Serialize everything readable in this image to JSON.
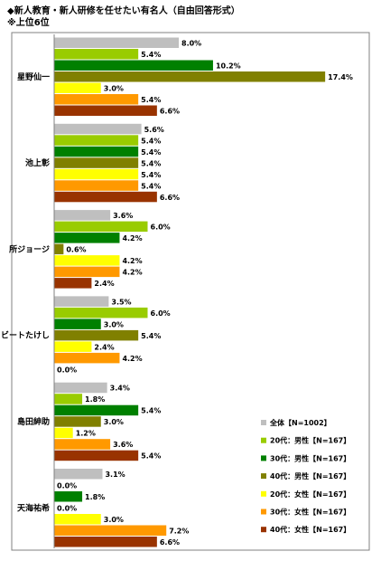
{
  "title": "◆新人教育・新人研修を任せたい有名人（自由回答形式）",
  "subtitle": "※上位6位",
  "chart_data": {
    "type": "bar",
    "orientation": "horizontal",
    "categories": [
      "星野仙一",
      "池上彰",
      "所ジョージ",
      "ビートたけし",
      "島田紳助",
      "天海祐希"
    ],
    "series": [
      {
        "name": "全体【N=1002】",
        "color": "#bfbfbf",
        "values": [
          8.0,
          5.6,
          3.6,
          3.5,
          3.4,
          3.1
        ]
      },
      {
        "name": "20代：男性【N=167】",
        "color": "#99cc00",
        "values": [
          5.4,
          5.4,
          6.0,
          6.0,
          1.8,
          0.0
        ]
      },
      {
        "name": "30代：男性【N=167】",
        "color": "#008000",
        "values": [
          10.2,
          5.4,
          4.2,
          3.0,
          5.4,
          1.8
        ]
      },
      {
        "name": "40代：男性【N=167】",
        "color": "#808000",
        "values": [
          17.4,
          5.4,
          0.6,
          5.4,
          3.0,
          0.0
        ]
      },
      {
        "name": "20代：女性【N=167】",
        "color": "#ffff00",
        "values": [
          3.0,
          5.4,
          4.2,
          2.4,
          1.2,
          3.0
        ]
      },
      {
        "name": "30代：女性【N=167】",
        "color": "#ff9900",
        "values": [
          5.4,
          5.4,
          4.2,
          4.2,
          3.6,
          7.2
        ]
      },
      {
        "name": "40代：女性【N=167】",
        "color": "#993300",
        "values": [
          6.6,
          6.6,
          2.4,
          0.0,
          5.4,
          6.6
        ]
      }
    ],
    "value_labels": [
      [
        "8.0%",
        "5.6%",
        "3.6%",
        "3.5%",
        "3.4%",
        "3.1%"
      ],
      [
        "5.4%",
        "5.4%",
        "6.0%",
        "6.0%",
        "1.8%",
        "0.0%"
      ],
      [
        "10.2%",
        "5.4%",
        "4.2%",
        "3.0%",
        "5.4%",
        "1.8%"
      ],
      [
        "17.4%",
        "5.4%",
        "0.6%",
        "5.4%",
        "3.0%",
        "0.0%"
      ],
      [
        "3.0%",
        "5.4%",
        "4.2%",
        "2.4%",
        "1.2%",
        "3.0%"
      ],
      [
        "5.4%",
        "5.4%",
        "4.2%",
        "4.2%",
        "3.6%",
        "7.2%"
      ],
      [
        "6.6%",
        "6.6%",
        "2.4%",
        "0.0%",
        "5.4%",
        "6.6%"
      ]
    ],
    "xlim": [
      0,
      20
    ],
    "grid": false,
    "legend_position": "bottom-right"
  }
}
